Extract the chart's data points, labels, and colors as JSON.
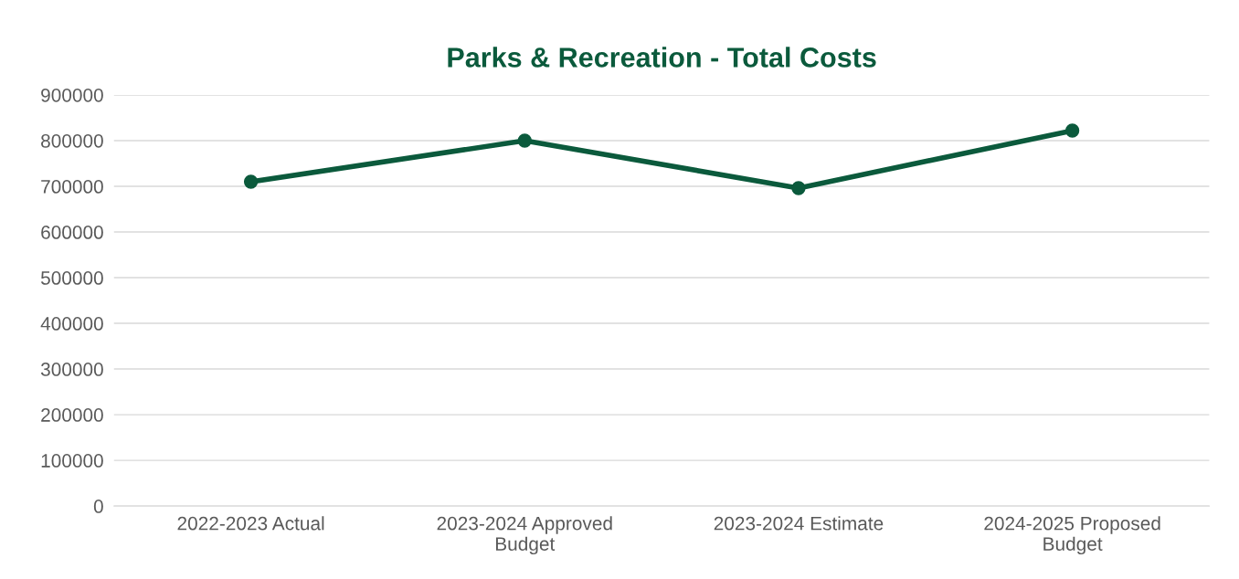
{
  "chart_data": {
    "type": "line",
    "title": "Parks & Recreation - Total Costs",
    "categories": [
      "2022-2023 Actual",
      "2023-2024 Approved\nBudget",
      "2023-2024 Estimate",
      "2024-2025 Proposed\nBudget"
    ],
    "series": [
      {
        "color": "#0b5a3c",
        "values": [
          710000,
          800000,
          696000,
          822000
        ]
      }
    ],
    "ylim": [
      0,
      900000
    ],
    "yticks": [
      0,
      100000,
      200000,
      300000,
      400000,
      500000,
      600000,
      700000,
      800000,
      900000
    ],
    "grid": "y",
    "marker": "circle",
    "line_style": "solid",
    "legend": false
  }
}
